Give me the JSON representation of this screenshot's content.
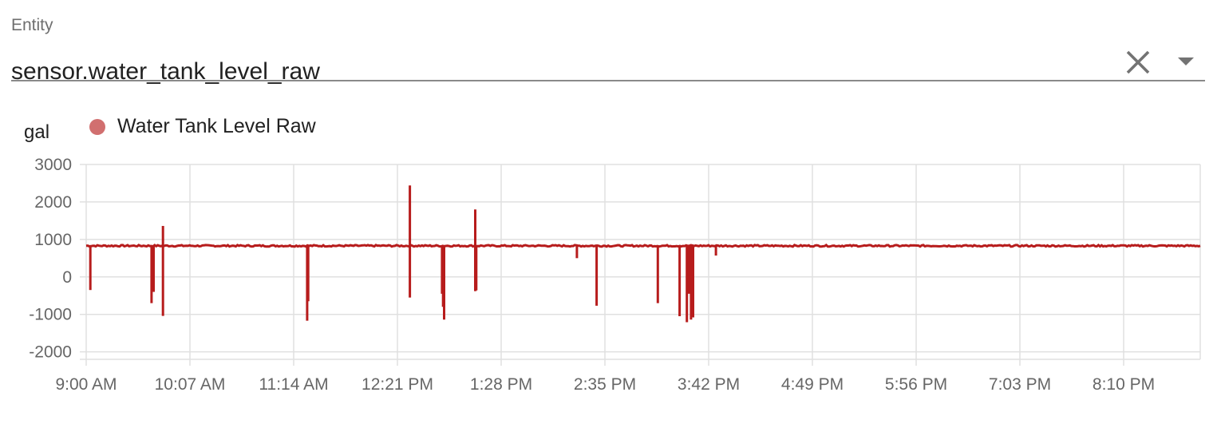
{
  "entity_picker": {
    "label": "Entity",
    "value": "sensor.water_tank_level_raw",
    "clear_icon": "close-icon",
    "dropdown_icon": "arrow-drop-down-icon"
  },
  "chart_data": {
    "type": "line",
    "unit": "gal",
    "legend_position": "top-left",
    "grid": true,
    "series": [
      {
        "name": "Water Tank Level Raw",
        "color": "#b71c1c",
        "legend_color": "#d16f6f",
        "baseline": 830,
        "spikes": [
          {
            "t": 0.04,
            "v": -350
          },
          {
            "t": 0.63,
            "v": -700
          },
          {
            "t": 0.65,
            "v": -400
          },
          {
            "t": 0.74,
            "v": 1360
          },
          {
            "t": 0.74,
            "v": -1040
          },
          {
            "t": 2.13,
            "v": -1170
          },
          {
            "t": 2.14,
            "v": -650
          },
          {
            "t": 3.12,
            "v": 2440
          },
          {
            "t": 3.12,
            "v": -550
          },
          {
            "t": 3.43,
            "v": -450
          },
          {
            "t": 3.44,
            "v": -800
          },
          {
            "t": 3.45,
            "v": -1140
          },
          {
            "t": 3.75,
            "v": 1800
          },
          {
            "t": 3.75,
            "v": -380
          },
          {
            "t": 3.76,
            "v": -360
          },
          {
            "t": 4.73,
            "v": 500
          },
          {
            "t": 4.92,
            "v": -770
          },
          {
            "t": 5.51,
            "v": -700
          },
          {
            "t": 5.72,
            "v": -1050
          },
          {
            "t": 5.79,
            "v": -1210
          },
          {
            "t": 5.81,
            "v": -450
          },
          {
            "t": 5.83,
            "v": -1140
          },
          {
            "t": 5.85,
            "v": -1080
          },
          {
            "t": 6.07,
            "v": 570
          }
        ]
      }
    ],
    "x_ticks": [
      "9:00 AM",
      "10:07 AM",
      "11:14 AM",
      "12:21 PM",
      "1:28 PM",
      "2:35 PM",
      "3:42 PM",
      "4:49 PM",
      "5:56 PM",
      "7:03 PM",
      "8:10 PM"
    ],
    "y_ticks": [
      3000,
      2000,
      1000,
      0,
      -1000,
      -2000
    ],
    "ylim": [
      -2200,
      3000
    ]
  }
}
